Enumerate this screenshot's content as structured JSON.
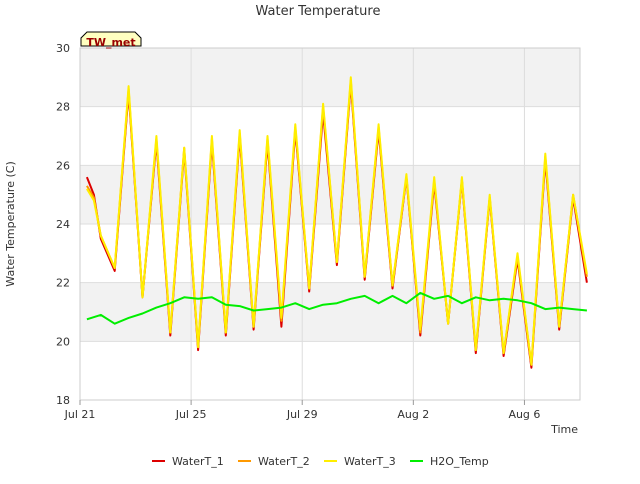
{
  "chart_data": {
    "type": "line",
    "title": "Water Temperature",
    "xlabel": "Time",
    "ylabel": "Water Temperature (C)",
    "site_badge": "TW_met",
    "ylim": [
      18,
      30
    ],
    "xlim": [
      "2023-07-21",
      "2023-08-08"
    ],
    "x_ticks": [
      {
        "date": "2023-07-21",
        "label": "Jul 21"
      },
      {
        "date": "2023-07-25",
        "label": "Jul 25"
      },
      {
        "date": "2023-07-29",
        "label": "Jul 29"
      },
      {
        "date": "2023-08-02",
        "label": "Aug 2"
      },
      {
        "date": "2023-08-06",
        "label": "Aug 6"
      }
    ],
    "y_ticks": [
      18,
      20,
      22,
      24,
      26,
      28,
      30
    ],
    "grid": true,
    "banding": "alternating grey bands",
    "legend_position": "bottom",
    "series": [
      {
        "name": "WaterT_1",
        "color": "#dd0000",
        "values": [
          [
            "2023-07-21 06:00",
            25.6
          ],
          [
            "2023-07-21 12:00",
            25.0
          ],
          [
            "2023-07-21 18:00",
            23.5
          ],
          [
            "2023-07-22 06:00",
            22.4
          ],
          [
            "2023-07-22 18:00",
            28.5
          ],
          [
            "2023-07-23 06:00",
            21.5
          ],
          [
            "2023-07-23 18:00",
            26.8
          ],
          [
            "2023-07-24 06:00",
            20.2
          ],
          [
            "2023-07-24 18:00",
            26.5
          ],
          [
            "2023-07-25 06:00",
            19.7
          ],
          [
            "2023-07-25 18:00",
            26.8
          ],
          [
            "2023-07-26 06:00",
            20.2
          ],
          [
            "2023-07-26 18:00",
            27.0
          ],
          [
            "2023-07-27 06:00",
            20.4
          ],
          [
            "2023-07-27 18:00",
            26.8
          ],
          [
            "2023-07-28 06:00",
            20.5
          ],
          [
            "2023-07-28 18:00",
            27.2
          ],
          [
            "2023-07-29 06:00",
            21.7
          ],
          [
            "2023-07-29 18:00",
            27.8
          ],
          [
            "2023-07-30 06:00",
            22.6
          ],
          [
            "2023-07-30 18:00",
            28.8
          ],
          [
            "2023-07-31 06:00",
            22.1
          ],
          [
            "2023-07-31 18:00",
            27.2
          ],
          [
            "2023-08-01 06:00",
            21.8
          ],
          [
            "2023-08-01 18:00",
            25.6
          ],
          [
            "2023-08-02 06:00",
            20.2
          ],
          [
            "2023-08-02 18:00",
            25.4
          ],
          [
            "2023-08-03 06:00",
            20.6
          ],
          [
            "2023-08-03 18:00",
            25.5
          ],
          [
            "2023-08-04 06:00",
            19.6
          ],
          [
            "2023-08-04 18:00",
            24.9
          ],
          [
            "2023-08-05 06:00",
            19.5
          ],
          [
            "2023-08-05 18:00",
            22.8
          ],
          [
            "2023-08-06 06:00",
            19.1
          ],
          [
            "2023-08-06 18:00",
            26.2
          ],
          [
            "2023-08-07 06:00",
            20.4
          ],
          [
            "2023-08-07 18:00",
            24.9
          ],
          [
            "2023-08-08 06:00",
            22.0
          ]
        ]
      },
      {
        "name": "WaterT_2",
        "color": "#ff9900",
        "values": [
          [
            "2023-07-21 06:00",
            25.3
          ],
          [
            "2023-07-21 12:00",
            24.9
          ],
          [
            "2023-07-21 18:00",
            23.6
          ],
          [
            "2023-07-22 06:00",
            22.5
          ],
          [
            "2023-07-22 18:00",
            28.6
          ],
          [
            "2023-07-23 06:00",
            21.5
          ],
          [
            "2023-07-23 18:00",
            26.9
          ],
          [
            "2023-07-24 06:00",
            20.3
          ],
          [
            "2023-07-24 18:00",
            26.6
          ],
          [
            "2023-07-25 06:00",
            19.8
          ],
          [
            "2023-07-25 18:00",
            26.9
          ],
          [
            "2023-07-26 06:00",
            20.3
          ],
          [
            "2023-07-26 18:00",
            27.1
          ],
          [
            "2023-07-27 06:00",
            20.5
          ],
          [
            "2023-07-27 18:00",
            26.9
          ],
          [
            "2023-07-28 06:00",
            20.7
          ],
          [
            "2023-07-28 18:00",
            27.3
          ],
          [
            "2023-07-29 06:00",
            21.8
          ],
          [
            "2023-07-29 18:00",
            28.0
          ],
          [
            "2023-07-30 06:00",
            22.7
          ],
          [
            "2023-07-30 18:00",
            28.9
          ],
          [
            "2023-07-31 06:00",
            22.2
          ],
          [
            "2023-07-31 18:00",
            27.3
          ],
          [
            "2023-08-01 06:00",
            21.9
          ],
          [
            "2023-08-01 18:00",
            25.6
          ],
          [
            "2023-08-02 06:00",
            20.3
          ],
          [
            "2023-08-02 18:00",
            25.5
          ],
          [
            "2023-08-03 06:00",
            20.6
          ],
          [
            "2023-08-03 18:00",
            25.5
          ],
          [
            "2023-08-04 06:00",
            19.7
          ],
          [
            "2023-08-04 18:00",
            24.9
          ],
          [
            "2023-08-05 06:00",
            19.6
          ],
          [
            "2023-08-05 18:00",
            22.9
          ],
          [
            "2023-08-06 06:00",
            19.2
          ],
          [
            "2023-08-06 18:00",
            26.3
          ],
          [
            "2023-08-07 06:00",
            20.5
          ],
          [
            "2023-08-07 18:00",
            25.0
          ],
          [
            "2023-08-08 06:00",
            22.2
          ]
        ]
      },
      {
        "name": "WaterT_3",
        "color": "#ffee00",
        "values": [
          [
            "2023-07-21 06:00",
            25.2
          ],
          [
            "2023-07-21 12:00",
            24.8
          ],
          [
            "2023-07-21 18:00",
            23.6
          ],
          [
            "2023-07-22 06:00",
            22.5
          ],
          [
            "2023-07-22 18:00",
            28.7
          ],
          [
            "2023-07-23 06:00",
            21.5
          ],
          [
            "2023-07-23 18:00",
            27.0
          ],
          [
            "2023-07-24 06:00",
            20.3
          ],
          [
            "2023-07-24 18:00",
            26.6
          ],
          [
            "2023-07-25 06:00",
            19.8
          ],
          [
            "2023-07-25 18:00",
            27.0
          ],
          [
            "2023-07-26 06:00",
            20.3
          ],
          [
            "2023-07-26 18:00",
            27.2
          ],
          [
            "2023-07-27 06:00",
            20.5
          ],
          [
            "2023-07-27 18:00",
            27.0
          ],
          [
            "2023-07-28 06:00",
            20.8
          ],
          [
            "2023-07-28 18:00",
            27.4
          ],
          [
            "2023-07-29 06:00",
            21.8
          ],
          [
            "2023-07-29 18:00",
            28.1
          ],
          [
            "2023-07-30 06:00",
            22.7
          ],
          [
            "2023-07-30 18:00",
            29.0
          ],
          [
            "2023-07-31 06:00",
            22.2
          ],
          [
            "2023-07-31 18:00",
            27.4
          ],
          [
            "2023-08-01 06:00",
            21.9
          ],
          [
            "2023-08-01 18:00",
            25.7
          ],
          [
            "2023-08-02 06:00",
            20.4
          ],
          [
            "2023-08-02 18:00",
            25.6
          ],
          [
            "2023-08-03 06:00",
            20.6
          ],
          [
            "2023-08-03 18:00",
            25.6
          ],
          [
            "2023-08-04 06:00",
            19.7
          ],
          [
            "2023-08-04 18:00",
            25.0
          ],
          [
            "2023-08-05 06:00",
            19.6
          ],
          [
            "2023-08-05 18:00",
            23.0
          ],
          [
            "2023-08-06 06:00",
            19.2
          ],
          [
            "2023-08-06 18:00",
            26.4
          ],
          [
            "2023-08-07 06:00",
            20.5
          ],
          [
            "2023-08-07 18:00",
            25.0
          ],
          [
            "2023-08-08 06:00",
            22.3
          ]
        ]
      },
      {
        "name": "H2O_Temp",
        "color": "#00ee00",
        "values": [
          [
            "2023-07-21 06:00",
            20.75
          ],
          [
            "2023-07-21 18:00",
            20.9
          ],
          [
            "2023-07-22 06:00",
            20.6
          ],
          [
            "2023-07-22 18:00",
            20.8
          ],
          [
            "2023-07-23 06:00",
            20.95
          ],
          [
            "2023-07-23 18:00",
            21.15
          ],
          [
            "2023-07-24 06:00",
            21.3
          ],
          [
            "2023-07-24 18:00",
            21.5
          ],
          [
            "2023-07-25 06:00",
            21.45
          ],
          [
            "2023-07-25 18:00",
            21.5
          ],
          [
            "2023-07-26 06:00",
            21.25
          ],
          [
            "2023-07-26 18:00",
            21.2
          ],
          [
            "2023-07-27 06:00",
            21.05
          ],
          [
            "2023-07-27 18:00",
            21.1
          ],
          [
            "2023-07-28 06:00",
            21.15
          ],
          [
            "2023-07-28 18:00",
            21.3
          ],
          [
            "2023-07-29 06:00",
            21.1
          ],
          [
            "2023-07-29 18:00",
            21.25
          ],
          [
            "2023-07-30 06:00",
            21.3
          ],
          [
            "2023-07-30 18:00",
            21.45
          ],
          [
            "2023-07-31 06:00",
            21.55
          ],
          [
            "2023-07-31 18:00",
            21.3
          ],
          [
            "2023-08-01 06:00",
            21.55
          ],
          [
            "2023-08-01 18:00",
            21.3
          ],
          [
            "2023-08-02 06:00",
            21.65
          ],
          [
            "2023-08-02 18:00",
            21.45
          ],
          [
            "2023-08-03 06:00",
            21.55
          ],
          [
            "2023-08-03 18:00",
            21.3
          ],
          [
            "2023-08-04 06:00",
            21.5
          ],
          [
            "2023-08-04 18:00",
            21.4
          ],
          [
            "2023-08-05 06:00",
            21.45
          ],
          [
            "2023-08-05 18:00",
            21.4
          ],
          [
            "2023-08-06 06:00",
            21.3
          ],
          [
            "2023-08-06 18:00",
            21.1
          ],
          [
            "2023-08-07 06:00",
            21.15
          ],
          [
            "2023-08-07 18:00",
            21.1
          ],
          [
            "2023-08-08 06:00",
            21.05
          ]
        ]
      }
    ]
  }
}
